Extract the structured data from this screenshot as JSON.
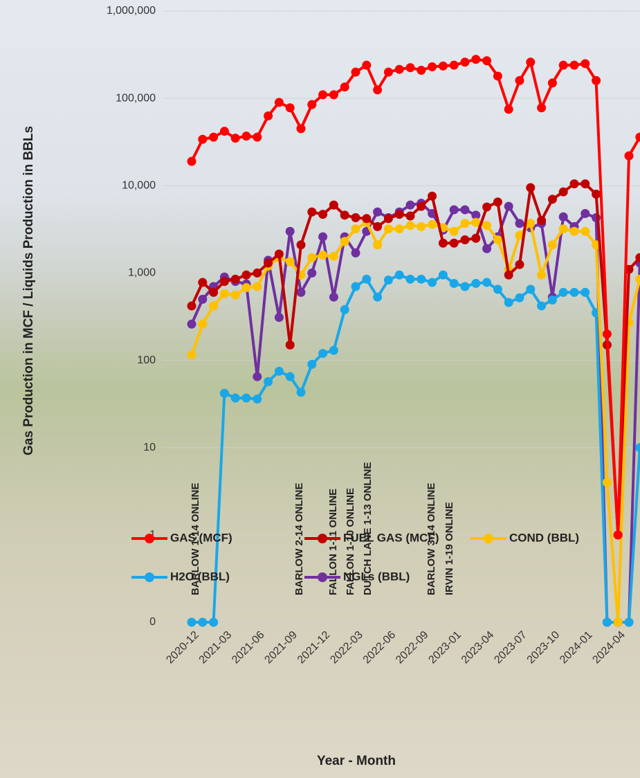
{
  "chart_data": {
    "type": "line",
    "y_label": "Gas Production in MCF / Liquids Production in BBLs",
    "x_label": "Year -  Month",
    "log_y": true,
    "grid": true,
    "legend": "bottom",
    "ylim": [
      0.1,
      1000000
    ],
    "yticks": [
      {
        "value": 0.1,
        "label": "0"
      },
      1,
      10,
      100,
      {
        "value": 1000,
        "label": "1,000"
      },
      {
        "value": 10000,
        "label": "10,000"
      },
      {
        "value": 100000,
        "label": "100,000"
      },
      {
        "value": 1000000,
        "label": "1,000,000"
      }
    ],
    "categories": [
      "2020-12",
      null,
      null,
      "2021-03",
      null,
      null,
      "2021-06",
      null,
      null,
      "2021-09",
      null,
      null,
      "2021-12",
      null,
      null,
      "2022-03",
      null,
      null,
      "2022-06",
      null,
      null,
      "2022-09",
      null,
      null,
      "2023-01",
      null,
      null,
      "2023-04",
      null,
      null,
      "2023-07",
      null,
      null,
      "2023-10",
      null,
      null,
      "2024-01",
      null,
      null,
      "2024-04",
      null,
      null
    ],
    "series": [
      {
        "name": "GAS (MCF)",
        "color": "#ff0000",
        "values": [
          19000,
          34000,
          36000,
          42000,
          35000,
          37000,
          36000,
          63000,
          90000,
          78000,
          45000,
          85000,
          110000,
          110000,
          135000,
          200000,
          240000,
          125000,
          200000,
          215000,
          225000,
          210000,
          230000,
          235000,
          240000,
          260000,
          280000,
          270000,
          180000,
          75000,
          160000,
          260000,
          78000,
          150000,
          240000,
          240000,
          250000,
          160000,
          200,
          1,
          22000,
          36000
        ]
      },
      {
        "name": "FUEL GAS (MCF)",
        "color": "#c00000",
        "values": [
          420,
          780,
          600,
          800,
          850,
          950,
          1000,
          1300,
          1650,
          150,
          2100,
          5000,
          4700,
          6000,
          4600,
          4300,
          4200,
          3400,
          4200,
          4700,
          4500,
          5800,
          7600,
          2200,
          2200,
          2400,
          2500,
          5700,
          6500,
          950,
          1250,
          9500,
          4000,
          7000,
          8500,
          10500,
          10500,
          8000,
          150,
          1,
          1100,
          1500
        ]
      },
      {
        "name": "COND (BBL)",
        "color": "#ffc000",
        "values": [
          115,
          260,
          420,
          580,
          560,
          680,
          700,
          1200,
          1500,
          1350,
          950,
          1500,
          1600,
          1550,
          2300,
          3200,
          3800,
          2100,
          3200,
          3200,
          3500,
          3400,
          3600,
          3300,
          3000,
          3700,
          3800,
          3500,
          2400,
          1100,
          2700,
          3700,
          950,
          2100,
          3200,
          3000,
          3000,
          2100,
          4,
          0.1,
          270,
          850
        ]
      },
      {
        "name": "H2O (BBL)",
        "color": "#1aa7e8",
        "values": [
          0.1,
          0.1,
          0.1,
          42,
          37,
          37,
          36,
          57,
          75,
          65,
          43,
          90,
          120,
          130,
          380,
          700,
          850,
          530,
          830,
          950,
          850,
          850,
          780,
          950,
          760,
          700,
          760,
          780,
          650,
          460,
          520,
          650,
          420,
          490,
          600,
          600,
          600,
          350,
          0.1,
          0.1,
          0.1,
          10
        ]
      },
      {
        "name": "NGLs (BBL)",
        "color": "#7030a0",
        "values": [
          260,
          500,
          700,
          900,
          800,
          750,
          65,
          1400,
          310,
          3000,
          600,
          1000,
          2600,
          530,
          2600,
          1700,
          3000,
          5000,
          4300,
          5000,
          6000,
          6300,
          4800,
          3100,
          5300,
          5300,
          4600,
          1900,
          2600,
          5800,
          3700,
          3300,
          3700,
          530,
          4400,
          3400,
          4800,
          4300,
          0.1,
          0.1,
          0.1,
          1300
        ]
      }
    ],
    "annotations": [
      [
        "BARLOW 1-14 ONLINE"
      ],
      [
        "BARLOW 2-14 ONLINE"
      ],
      [
        "FALLON 1-11 ONLINE",
        "FALLON 1-10 ONLINE",
        "DUTCH LANE 1-13 ONLINE"
      ],
      [
        "BARLOW 3-14 ONLINE",
        "IRVIN 1-19 ONLINE"
      ]
    ]
  }
}
